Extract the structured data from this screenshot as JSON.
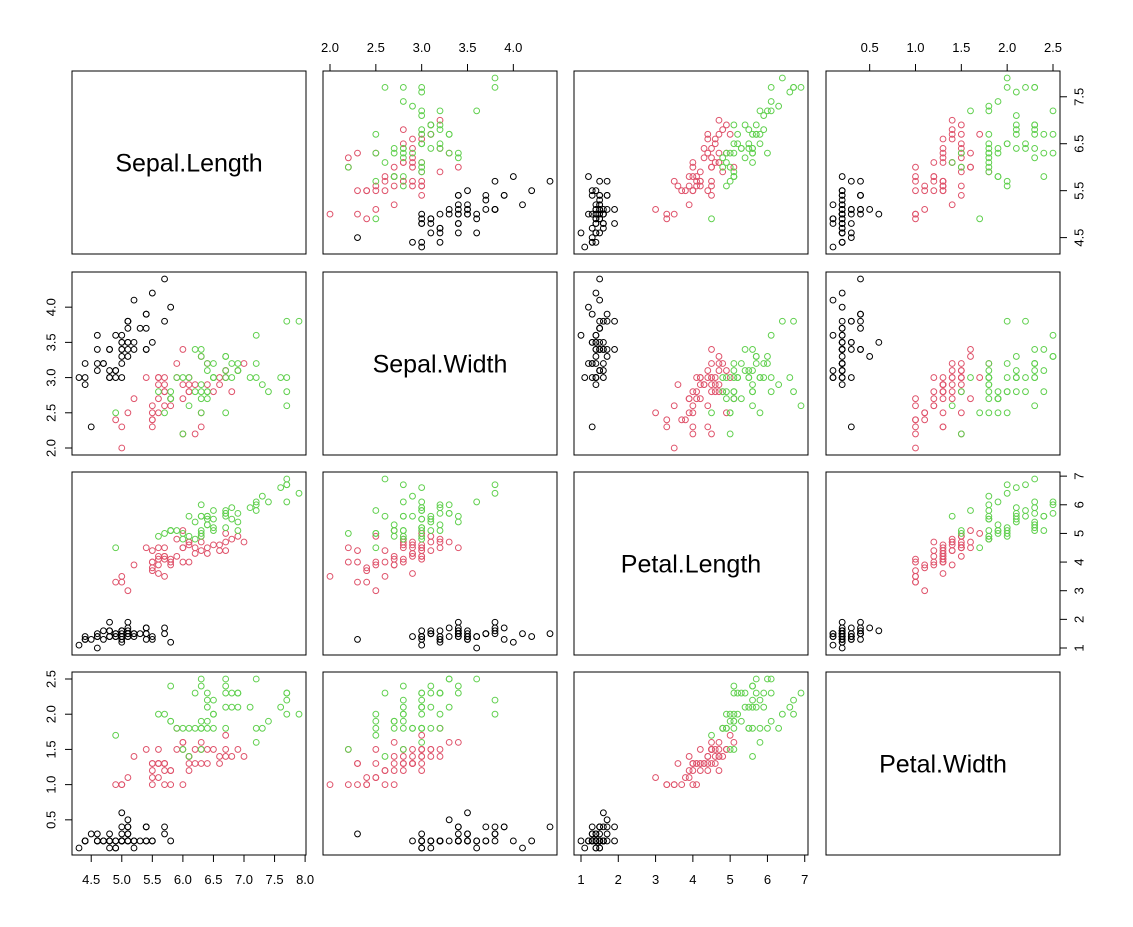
{
  "chart_data": {
    "type": "scatter",
    "title": "",
    "variables": [
      {
        "name": "Sepal.Length",
        "range": [
          4.3,
          7.9
        ],
        "ticks": [
          4.5,
          5.0,
          5.5,
          6.0,
          6.5,
          7.0,
          7.5,
          8.0
        ],
        "tick_labels": [
          "4.5",
          "5.0",
          "5.5",
          "6.0",
          "6.5",
          "7.0",
          "7.5",
          "8.0"
        ]
      },
      {
        "name": "Sepal.Width",
        "range": [
          2.0,
          4.4
        ],
        "ticks": [
          2.0,
          2.5,
          3.0,
          3.5,
          4.0
        ],
        "tick_labels": [
          "2.0",
          "2.5",
          "3.0",
          "3.5",
          "4.0"
        ]
      },
      {
        "name": "Petal.Length",
        "range": [
          1.0,
          6.9
        ],
        "ticks": [
          1,
          2,
          3,
          4,
          5,
          6,
          7
        ],
        "tick_labels": [
          "1",
          "2",
          "3",
          "4",
          "5",
          "6",
          "7"
        ]
      },
      {
        "name": "Petal.Width",
        "range": [
          0.1,
          2.5
        ],
        "ticks": [
          0.5,
          1.0,
          1.5,
          2.0,
          2.5
        ],
        "tick_labels": [
          "0.5",
          "1.0",
          "1.5",
          "2.0",
          "2.5"
        ]
      }
    ],
    "right_axis_ticks": {
      "0": {
        "ticks": [
          4.5,
          5.5,
          6.5,
          7.5
        ],
        "tick_labels": [
          "4.5",
          "5.5",
          "6.5",
          "7.5"
        ]
      }
    },
    "axis_placement": {
      "top": [
        1,
        3
      ],
      "bottom": [
        0,
        2
      ],
      "left": [
        1,
        3
      ],
      "right": [
        0,
        2
      ]
    },
    "grid": false,
    "groups": [
      {
        "color": "#000000"
      },
      {
        "color": "#DF536B"
      },
      {
        "color": "#61D04F"
      }
    ],
    "points": [
      [
        5.1,
        3.5,
        1.4,
        0.2,
        0
      ],
      [
        4.9,
        3.0,
        1.4,
        0.2,
        0
      ],
      [
        4.7,
        3.2,
        1.3,
        0.2,
        0
      ],
      [
        4.6,
        3.1,
        1.5,
        0.2,
        0
      ],
      [
        5.0,
        3.6,
        1.4,
        0.2,
        0
      ],
      [
        5.4,
        3.9,
        1.7,
        0.4,
        0
      ],
      [
        4.6,
        3.4,
        1.4,
        0.3,
        0
      ],
      [
        5.0,
        3.4,
        1.5,
        0.2,
        0
      ],
      [
        4.4,
        2.9,
        1.4,
        0.2,
        0
      ],
      [
        4.9,
        3.1,
        1.5,
        0.1,
        0
      ],
      [
        5.4,
        3.7,
        1.5,
        0.2,
        0
      ],
      [
        4.8,
        3.4,
        1.6,
        0.2,
        0
      ],
      [
        4.8,
        3.0,
        1.4,
        0.1,
        0
      ],
      [
        4.3,
        3.0,
        1.1,
        0.1,
        0
      ],
      [
        5.8,
        4.0,
        1.2,
        0.2,
        0
      ],
      [
        5.7,
        4.4,
        1.5,
        0.4,
        0
      ],
      [
        5.4,
        3.9,
        1.3,
        0.4,
        0
      ],
      [
        5.1,
        3.5,
        1.4,
        0.3,
        0
      ],
      [
        5.7,
        3.8,
        1.7,
        0.3,
        0
      ],
      [
        5.1,
        3.8,
        1.5,
        0.3,
        0
      ],
      [
        5.4,
        3.4,
        1.7,
        0.2,
        0
      ],
      [
        5.1,
        3.7,
        1.5,
        0.4,
        0
      ],
      [
        4.6,
        3.6,
        1.0,
        0.2,
        0
      ],
      [
        5.1,
        3.3,
        1.7,
        0.5,
        0
      ],
      [
        4.8,
        3.4,
        1.9,
        0.2,
        0
      ],
      [
        5.0,
        3.0,
        1.6,
        0.2,
        0
      ],
      [
        5.0,
        3.4,
        1.6,
        0.4,
        0
      ],
      [
        5.2,
        3.5,
        1.5,
        0.2,
        0
      ],
      [
        5.2,
        3.4,
        1.4,
        0.2,
        0
      ],
      [
        4.7,
        3.2,
        1.6,
        0.2,
        0
      ],
      [
        4.8,
        3.1,
        1.6,
        0.2,
        0
      ],
      [
        5.4,
        3.4,
        1.5,
        0.4,
        0
      ],
      [
        5.2,
        4.1,
        1.5,
        0.1,
        0
      ],
      [
        5.5,
        4.2,
        1.4,
        0.2,
        0
      ],
      [
        4.9,
        3.1,
        1.5,
        0.2,
        0
      ],
      [
        5.0,
        3.2,
        1.2,
        0.2,
        0
      ],
      [
        5.5,
        3.5,
        1.3,
        0.2,
        0
      ],
      [
        4.9,
        3.6,
        1.4,
        0.1,
        0
      ],
      [
        4.4,
        3.0,
        1.3,
        0.2,
        0
      ],
      [
        5.1,
        3.4,
        1.5,
        0.2,
        0
      ],
      [
        5.0,
        3.5,
        1.3,
        0.3,
        0
      ],
      [
        4.5,
        2.3,
        1.3,
        0.3,
        0
      ],
      [
        4.4,
        3.2,
        1.3,
        0.2,
        0
      ],
      [
        5.0,
        3.5,
        1.6,
        0.6,
        0
      ],
      [
        5.1,
        3.8,
        1.9,
        0.4,
        0
      ],
      [
        4.8,
        3.0,
        1.4,
        0.3,
        0
      ],
      [
        5.1,
        3.8,
        1.6,
        0.2,
        0
      ],
      [
        4.6,
        3.2,
        1.4,
        0.2,
        0
      ],
      [
        5.3,
        3.7,
        1.5,
        0.2,
        0
      ],
      [
        5.0,
        3.3,
        1.4,
        0.2,
        0
      ],
      [
        7.0,
        3.2,
        4.7,
        1.4,
        1
      ],
      [
        6.4,
        3.2,
        4.5,
        1.5,
        1
      ],
      [
        6.9,
        3.1,
        4.9,
        1.5,
        1
      ],
      [
        5.5,
        2.3,
        4.0,
        1.3,
        1
      ],
      [
        6.5,
        2.8,
        4.6,
        1.5,
        1
      ],
      [
        5.7,
        2.8,
        4.5,
        1.3,
        1
      ],
      [
        6.3,
        3.3,
        4.7,
        1.6,
        1
      ],
      [
        4.9,
        2.4,
        3.3,
        1.0,
        1
      ],
      [
        6.6,
        2.9,
        4.6,
        1.3,
        1
      ],
      [
        5.2,
        2.7,
        3.9,
        1.4,
        1
      ],
      [
        5.0,
        2.0,
        3.5,
        1.0,
        1
      ],
      [
        5.9,
        3.0,
        4.2,
        1.5,
        1
      ],
      [
        6.0,
        2.2,
        4.0,
        1.0,
        1
      ],
      [
        6.1,
        2.9,
        4.7,
        1.4,
        1
      ],
      [
        5.6,
        2.9,
        3.6,
        1.3,
        1
      ],
      [
        6.7,
        3.1,
        4.4,
        1.4,
        1
      ],
      [
        5.6,
        3.0,
        4.5,
        1.5,
        1
      ],
      [
        5.8,
        2.7,
        4.1,
        1.0,
        1
      ],
      [
        6.2,
        2.2,
        4.5,
        1.5,
        1
      ],
      [
        5.6,
        2.5,
        3.9,
        1.1,
        1
      ],
      [
        5.9,
        3.2,
        4.8,
        1.8,
        1
      ],
      [
        6.1,
        2.8,
        4.0,
        1.3,
        1
      ],
      [
        6.3,
        2.5,
        4.9,
        1.5,
        1
      ],
      [
        6.1,
        2.8,
        4.7,
        1.2,
        1
      ],
      [
        6.4,
        2.9,
        4.3,
        1.3,
        1
      ],
      [
        6.6,
        3.0,
        4.4,
        1.4,
        1
      ],
      [
        6.8,
        2.8,
        4.8,
        1.4,
        1
      ],
      [
        6.7,
        3.0,
        5.0,
        1.7,
        1
      ],
      [
        6.0,
        2.9,
        4.5,
        1.5,
        1
      ],
      [
        5.7,
        2.6,
        3.5,
        1.0,
        1
      ],
      [
        5.5,
        2.4,
        3.8,
        1.1,
        1
      ],
      [
        5.5,
        2.4,
        3.7,
        1.0,
        1
      ],
      [
        5.8,
        2.7,
        3.9,
        1.2,
        1
      ],
      [
        6.0,
        2.7,
        5.1,
        1.6,
        1
      ],
      [
        5.4,
        3.0,
        4.5,
        1.5,
        1
      ],
      [
        6.0,
        3.4,
        4.5,
        1.6,
        1
      ],
      [
        6.7,
        3.1,
        4.7,
        1.5,
        1
      ],
      [
        6.3,
        2.3,
        4.4,
        1.3,
        1
      ],
      [
        5.6,
        3.0,
        4.1,
        1.3,
        1
      ],
      [
        5.5,
        2.5,
        4.0,
        1.3,
        1
      ],
      [
        5.5,
        2.6,
        4.4,
        1.2,
        1
      ],
      [
        6.1,
        3.0,
        4.6,
        1.4,
        1
      ],
      [
        5.8,
        2.6,
        4.0,
        1.2,
        1
      ],
      [
        5.0,
        2.3,
        3.3,
        1.0,
        1
      ],
      [
        5.6,
        2.7,
        4.2,
        1.3,
        1
      ],
      [
        5.7,
        3.0,
        4.2,
        1.2,
        1
      ],
      [
        5.7,
        2.9,
        4.2,
        1.3,
        1
      ],
      [
        6.2,
        2.9,
        4.3,
        1.3,
        1
      ],
      [
        5.1,
        2.5,
        3.0,
        1.1,
        1
      ],
      [
        5.7,
        2.8,
        4.1,
        1.3,
        1
      ],
      [
        6.3,
        3.3,
        6.0,
        2.5,
        2
      ],
      [
        5.8,
        2.7,
        5.1,
        1.9,
        2
      ],
      [
        7.1,
        3.0,
        5.9,
        2.1,
        2
      ],
      [
        6.3,
        2.9,
        5.6,
        1.8,
        2
      ],
      [
        6.5,
        3.0,
        5.8,
        2.2,
        2
      ],
      [
        7.6,
        3.0,
        6.6,
        2.1,
        2
      ],
      [
        4.9,
        2.5,
        4.5,
        1.7,
        2
      ],
      [
        7.3,
        2.9,
        6.3,
        1.8,
        2
      ],
      [
        6.7,
        2.5,
        5.8,
        1.8,
        2
      ],
      [
        7.2,
        3.6,
        6.1,
        2.5,
        2
      ],
      [
        6.5,
        3.2,
        5.1,
        2.0,
        2
      ],
      [
        6.4,
        2.7,
        5.3,
        1.9,
        2
      ],
      [
        6.8,
        3.0,
        5.5,
        2.1,
        2
      ],
      [
        5.7,
        2.5,
        5.0,
        2.0,
        2
      ],
      [
        5.8,
        2.8,
        5.1,
        2.4,
        2
      ],
      [
        6.4,
        3.2,
        5.3,
        2.3,
        2
      ],
      [
        6.5,
        3.0,
        5.5,
        1.8,
        2
      ],
      [
        7.7,
        3.8,
        6.7,
        2.2,
        2
      ],
      [
        7.7,
        2.6,
        6.9,
        2.3,
        2
      ],
      [
        6.0,
        2.2,
        5.0,
        1.5,
        2
      ],
      [
        6.9,
        3.2,
        5.7,
        2.3,
        2
      ],
      [
        5.6,
        2.8,
        4.9,
        2.0,
        2
      ],
      [
        7.7,
        2.8,
        6.7,
        2.0,
        2
      ],
      [
        6.3,
        2.7,
        4.9,
        1.8,
        2
      ],
      [
        6.7,
        3.3,
        5.7,
        2.1,
        2
      ],
      [
        7.2,
        3.2,
        6.0,
        1.8,
        2
      ],
      [
        6.2,
        2.8,
        4.8,
        1.8,
        2
      ],
      [
        6.1,
        3.0,
        4.9,
        1.8,
        2
      ],
      [
        6.4,
        2.8,
        5.6,
        2.1,
        2
      ],
      [
        7.2,
        3.0,
        5.8,
        1.6,
        2
      ],
      [
        7.4,
        2.8,
        6.1,
        1.9,
        2
      ],
      [
        7.9,
        3.8,
        6.4,
        2.0,
        2
      ],
      [
        6.4,
        2.8,
        5.6,
        2.2,
        2
      ],
      [
        6.3,
        2.8,
        5.1,
        1.5,
        2
      ],
      [
        6.1,
        2.6,
        5.6,
        1.4,
        2
      ],
      [
        7.7,
        3.0,
        6.1,
        2.3,
        2
      ],
      [
        6.3,
        3.4,
        5.6,
        2.4,
        2
      ],
      [
        6.4,
        3.1,
        5.5,
        1.8,
        2
      ],
      [
        6.0,
        3.0,
        4.8,
        1.8,
        2
      ],
      [
        6.9,
        3.1,
        5.4,
        2.1,
        2
      ],
      [
        6.7,
        3.1,
        5.6,
        2.4,
        2
      ],
      [
        6.9,
        3.1,
        5.1,
        2.3,
        2
      ],
      [
        5.8,
        2.7,
        5.1,
        1.9,
        2
      ],
      [
        6.8,
        3.2,
        5.9,
        2.3,
        2
      ],
      [
        6.7,
        3.3,
        5.7,
        2.5,
        2
      ],
      [
        6.7,
        3.0,
        5.2,
        2.3,
        2
      ],
      [
        6.3,
        2.5,
        5.0,
        1.9,
        2
      ],
      [
        6.5,
        3.0,
        5.2,
        2.0,
        2
      ],
      [
        6.2,
        3.4,
        5.4,
        2.3,
        2
      ],
      [
        5.9,
        3.0,
        5.1,
        1.8,
        2
      ]
    ]
  }
}
